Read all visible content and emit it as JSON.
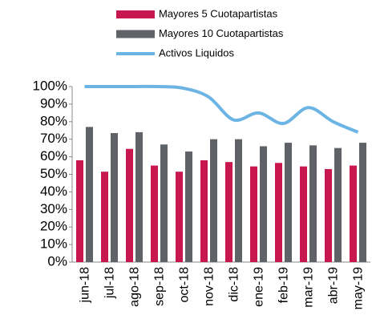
{
  "chart_data": {
    "type": "bar-line",
    "categories": [
      "jun-18",
      "jul-18",
      "ago-18",
      "sep-18",
      "oct-18",
      "nov-18",
      "dic-18",
      "ene-19",
      "feb-19",
      "mar-19",
      "abr-19",
      "may-19"
    ],
    "series": [
      {
        "name": "Mayores 5 Cuotapartistas",
        "type": "bar",
        "color": "#c8174f",
        "values": [
          58,
          51.5,
          64.5,
          55,
          51.5,
          58,
          57,
          54.5,
          56.5,
          54.5,
          53,
          55
        ]
      },
      {
        "name": "Mayores 10 Cuotapartistas",
        "type": "bar",
        "color": "#5f6266",
        "values": [
          77,
          73.5,
          74,
          67,
          63,
          70,
          70,
          66,
          68,
          66.5,
          65,
          68
        ]
      },
      {
        "name": "Activos Liquidos",
        "type": "line",
        "color": "#6cb4e4",
        "values": [
          100,
          100,
          100,
          100,
          99,
          94,
          81,
          85,
          79,
          88,
          80,
          74
        ]
      }
    ],
    "ylim": [
      0,
      100
    ],
    "yticks": [
      {
        "value": 0,
        "label": "0%"
      },
      {
        "value": 10,
        "label": "10%"
      },
      {
        "value": 20,
        "label": "20%"
      },
      {
        "value": 30,
        "label": "30%"
      },
      {
        "value": 40,
        "label": "40%"
      },
      {
        "value": 50,
        "label": "50%"
      },
      {
        "value": 60,
        "label": "60%"
      },
      {
        "value": 70,
        "label": "70%"
      },
      {
        "value": 80,
        "label": "80%"
      },
      {
        "value": 90,
        "label": "90%"
      },
      {
        "value": 100,
        "label": "100%"
      }
    ],
    "legend": "top"
  }
}
